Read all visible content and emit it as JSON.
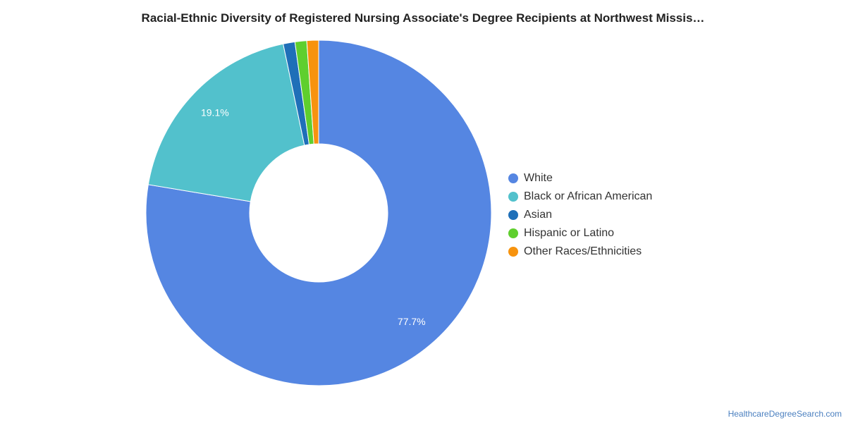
{
  "chart_data": {
    "type": "pie",
    "title": "Racial-Ethnic Diversity of Registered Nursing Associate's Degree Recipients at Northwest Missis…",
    "categories": [
      "White",
      "Black or African American",
      "Asian",
      "Hispanic or Latino",
      "Other Races/Ethnicities"
    ],
    "values": [
      77.7,
      19.1,
      1.1,
      1.1,
      1.1
    ],
    "data_labels": [
      "77.7%",
      "19.1%",
      "",
      "",
      ""
    ],
    "colors": [
      "#5586e2",
      "#52c1cc",
      "#1f6fb8",
      "#5fcf2e",
      "#f7930e"
    ],
    "legend_position": "right",
    "donut": true
  },
  "footer": {
    "source": "HealthcareDegreeSearch.com"
  }
}
